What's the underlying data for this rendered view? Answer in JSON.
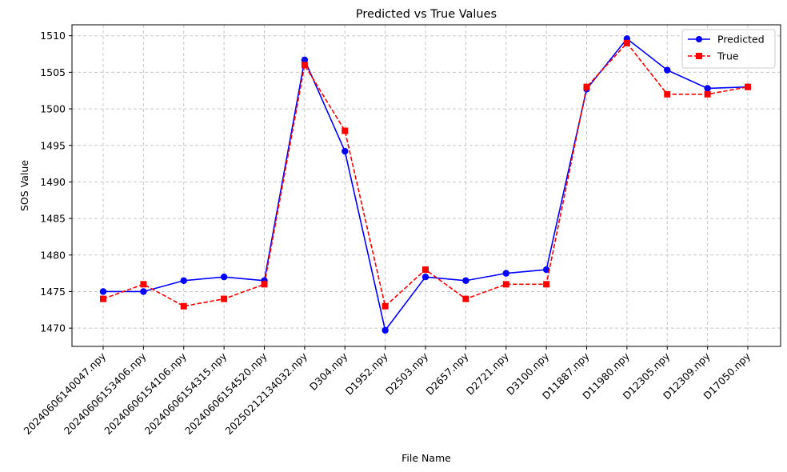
{
  "chart_data": {
    "type": "line",
    "title": "Predicted vs True Values",
    "xlabel": "File Name",
    "ylabel": "SOS Value",
    "categories": [
      "20240606140047.npy",
      "20240606153406.npy",
      "20240606154106.npy",
      "20240606154315.npy",
      "20240606154520.npy",
      "20250212134032.npy",
      "D304.npy",
      "D1952.npy",
      "D2503.npy",
      "D2657.npy",
      "D2721.npy",
      "D3100.npy",
      "D11887.npy",
      "D11980.npy",
      "D12305.npy",
      "D12309.npy",
      "D17050.npy"
    ],
    "series": [
      {
        "name": "Predicted",
        "color": "#0000ff",
        "line_style": "solid",
        "marker": "circle",
        "values": [
          1475.0,
          1475.0,
          1476.5,
          1477.0,
          1476.5,
          1506.7,
          1494.2,
          1469.7,
          1477.0,
          1476.5,
          1477.5,
          1478.0,
          1502.7,
          1509.6,
          1505.3,
          1502.8,
          1503.0
        ]
      },
      {
        "name": "True",
        "color": "#ff0000",
        "line_style": "dashed",
        "marker": "square",
        "values": [
          1474.0,
          1476.0,
          1473.0,
          1474.0,
          1476.0,
          1506.0,
          1497.0,
          1473.0,
          1478.0,
          1474.0,
          1476.0,
          1476.0,
          1503.0,
          1509.0,
          1502.0,
          1502.0,
          1503.0
        ]
      }
    ],
    "yticks": [
      1470,
      1475,
      1480,
      1485,
      1490,
      1495,
      1500,
      1505,
      1510
    ],
    "ylim": [
      1467.5,
      1511.5
    ],
    "grid": true,
    "grid_color": "#c8c8c8",
    "legend_position": "top-right"
  }
}
